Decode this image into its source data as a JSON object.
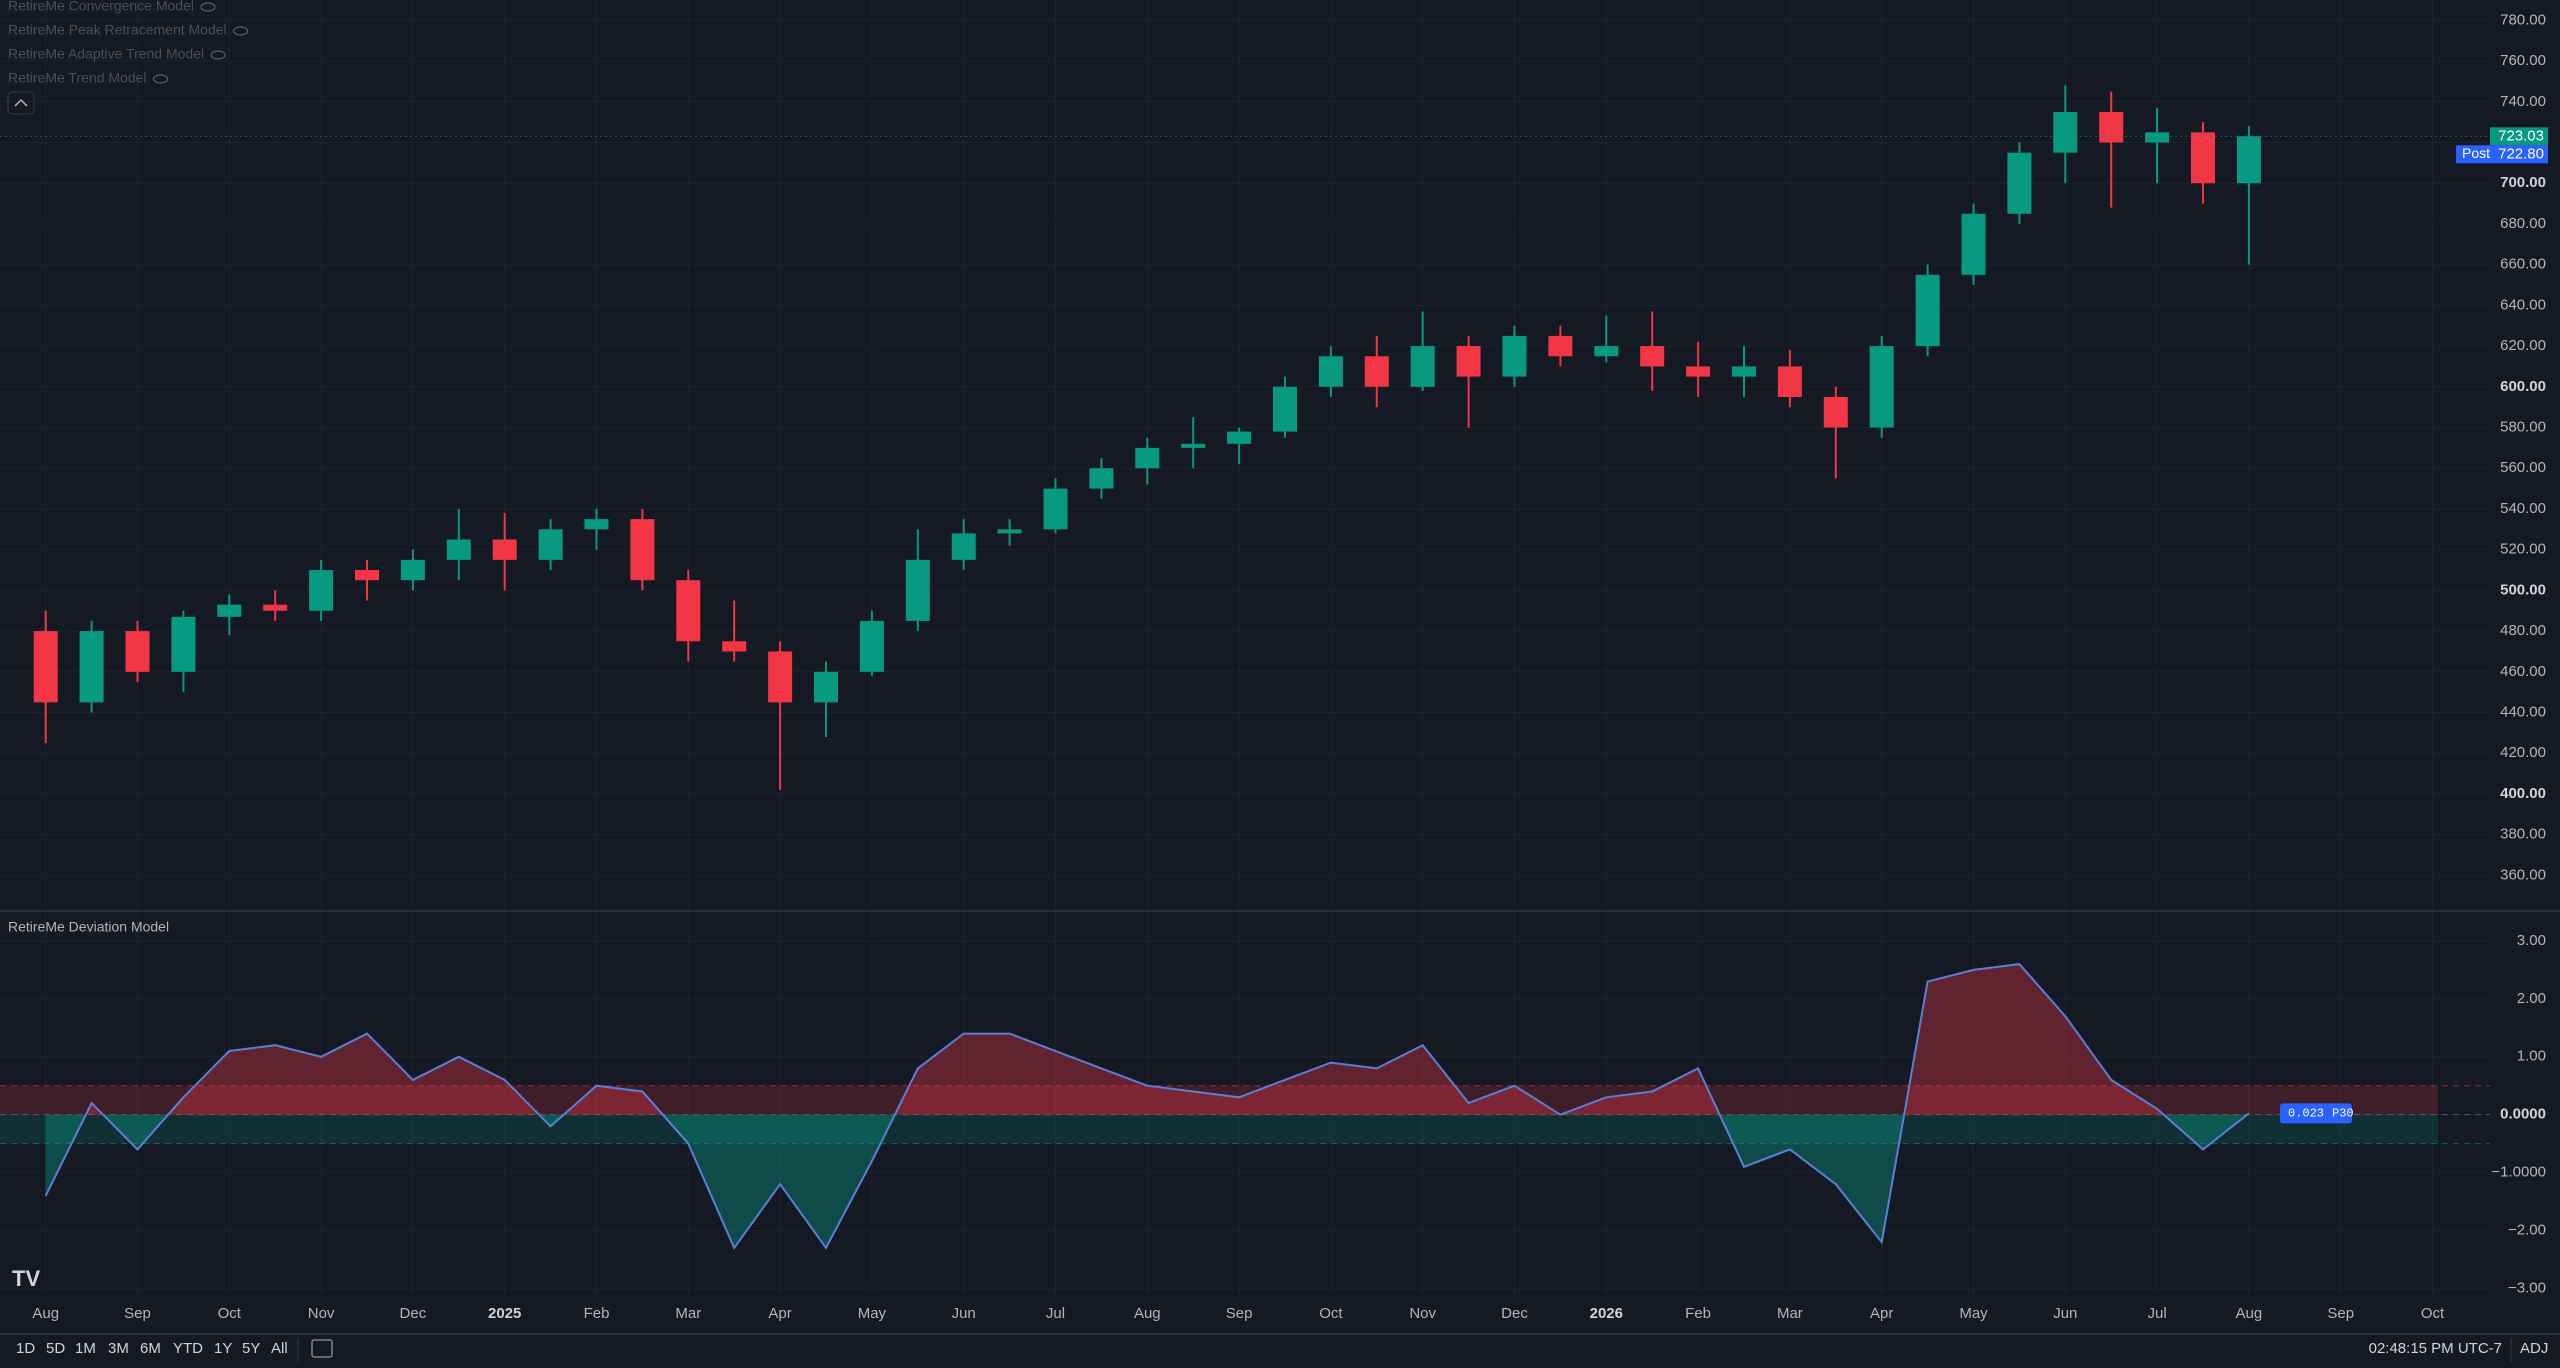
{
  "chart_data": [
    {
      "type": "candlestick",
      "categories": [
        "Aug",
        null,
        "Sep",
        null,
        "Oct",
        null,
        "Nov",
        null,
        "Dec",
        null,
        "2025",
        null,
        "Feb",
        null,
        "Mar",
        null,
        "Apr",
        null,
        "May",
        null,
        "Jun",
        null,
        "Jul",
        null,
        "Aug",
        null,
        "Sep",
        null,
        "Oct",
        null,
        "Nov",
        null,
        "Dec",
        null,
        "2026",
        null,
        "Feb",
        null,
        "Mar",
        null,
        "Apr",
        null,
        "May",
        null,
        "Jun",
        null,
        "Jul",
        null,
        "Aug",
        null,
        "Sep",
        null,
        "Oct",
        null
      ],
      "open": [
        480,
        445,
        480,
        460,
        487,
        493,
        490,
        510,
        505,
        515,
        525,
        515,
        530,
        535,
        505,
        475,
        470,
        445,
        460,
        485,
        515,
        528,
        530,
        550,
        560,
        570,
        572,
        578,
        600,
        615,
        600,
        620,
        605,
        625,
        615,
        620,
        610,
        605,
        610,
        595,
        580,
        620,
        655,
        685,
        715,
        735,
        720,
        725,
        700,
        null,
        null,
        null,
        null,
        null
      ],
      "high": [
        490,
        485,
        485,
        490,
        498,
        500,
        515,
        515,
        520,
        540,
        538,
        535,
        540,
        540,
        510,
        495,
        475,
        465,
        490,
        530,
        535,
        535,
        555,
        565,
        575,
        585,
        580,
        605,
        620,
        625,
        637,
        625,
        630,
        630,
        635,
        637,
        622,
        620,
        618,
        600,
        625,
        660,
        690,
        720,
        748,
        745,
        737,
        730,
        728,
        null,
        null,
        null,
        null,
        null
      ],
      "low": [
        425,
        440,
        455,
        450,
        478,
        485,
        485,
        495,
        500,
        505,
        500,
        510,
        520,
        500,
        465,
        465,
        402,
        428,
        458,
        480,
        510,
        522,
        528,
        545,
        552,
        560,
        562,
        575,
        595,
        590,
        598,
        580,
        600,
        610,
        612,
        598,
        595,
        595,
        590,
        555,
        575,
        615,
        650,
        680,
        700,
        688,
        700,
        690,
        660,
        null,
        null,
        null,
        null,
        null
      ],
      "close": [
        445,
        480,
        460,
        487,
        493,
        490,
        510,
        505,
        515,
        525,
        515,
        530,
        535,
        505,
        475,
        470,
        445,
        460,
        485,
        515,
        528,
        530,
        550,
        560,
        570,
        572,
        578,
        600,
        615,
        600,
        620,
        605,
        625,
        615,
        620,
        610,
        605,
        610,
        595,
        580,
        620,
        655,
        685,
        715,
        735,
        720,
        725,
        700,
        723.03,
        null,
        null,
        null,
        null,
        null
      ],
      "up_color": "#089981",
      "down_color": "#f23645",
      "ylim": [
        343,
        790
      ],
      "yticks": [
        {
          "value": 360,
          "label": "360.00"
        },
        {
          "value": 380,
          "label": "380.00"
        },
        {
          "value": 400,
          "label": "400.00"
        },
        {
          "value": 420,
          "label": "420.00"
        },
        {
          "value": 440,
          "label": "440.00"
        },
        {
          "value": 460,
          "label": "460.00"
        },
        {
          "value": 480,
          "label": "480.00"
        },
        {
          "value": 500,
          "label": "500.00"
        },
        {
          "value": 520,
          "label": "520.00"
        },
        {
          "value": 540,
          "label": "540.00"
        },
        {
          "value": 560,
          "label": "560.00"
        },
        {
          "value": 580,
          "label": "580.00"
        },
        {
          "value": 600,
          "label": "600.00"
        },
        {
          "value": 620,
          "label": "620.00"
        },
        {
          "value": 640,
          "label": "640.00"
        },
        {
          "value": 660,
          "label": "660.00"
        },
        {
          "value": 680,
          "label": "680.00"
        },
        {
          "value": 700,
          "label": "700.00"
        },
        {
          "value": 720,
          "label": "720.00"
        },
        {
          "value": 740,
          "label": "740.00"
        },
        {
          "value": 760,
          "label": "760.00"
        },
        {
          "value": 780,
          "label": "780.00"
        }
      ],
      "grid": true,
      "last_price": 723.03,
      "post_price": {
        "value": 722.8,
        "label": "722.80",
        "name": "Post"
      }
    },
    {
      "type": "area",
      "title": "RetireMe Deviation Model",
      "values": [
        -1.4,
        0.2,
        -0.6,
        0.3,
        1.1,
        1.2,
        1.0,
        1.4,
        0.6,
        1.0,
        0.6,
        -0.2,
        0.5,
        0.4,
        -0.5,
        -2.3,
        -1.2,
        -2.3,
        -0.8,
        0.8,
        1.4,
        1.4,
        1.1,
        0.8,
        0.5,
        0.4,
        0.3,
        0.6,
        0.9,
        0.8,
        1.2,
        0.2,
        0.5,
        0.0,
        0.3,
        0.4,
        0.8,
        -0.9,
        -0.6,
        -1.2,
        -2.2,
        2.3,
        2.5,
        2.6,
        1.7,
        0.6,
        0.1,
        -0.6,
        0.023,
        null,
        null,
        null,
        null,
        null
      ],
      "line_color": "#5b7fd6",
      "pos_color": "#f23645",
      "neg_color": "#089981",
      "levels": [
        0.5,
        -0.5
      ],
      "ylim": [
        -3.2,
        3.5
      ],
      "yticks": [
        {
          "value": 3,
          "label": "3.00"
        },
        {
          "value": 2,
          "label": "2.00"
        },
        {
          "value": 1,
          "label": "1.00"
        },
        {
          "value": 0,
          "label": "0.0000"
        },
        {
          "value": -1,
          "label": "−1.0000"
        },
        {
          "value": -2,
          "label": "−2.00"
        },
        {
          "value": -3,
          "label": "−3.00"
        }
      ],
      "last_tag": {
        "value": 0.023,
        "name": "P30"
      }
    }
  ],
  "indicators": [
    "RetireMe Convergence Model",
    "RetireMe Peak Retracement Model",
    "RetireMe Adaptive Trend Model",
    "RetireMe Trend Model"
  ],
  "toolbar": {
    "ranges": [
      "1D",
      "5D",
      "1M",
      "3M",
      "6M",
      "YTD",
      "1Y",
      "5Y",
      "All"
    ],
    "time": "02:48:15 PM UTC-7",
    "adj": "ADJ"
  }
}
